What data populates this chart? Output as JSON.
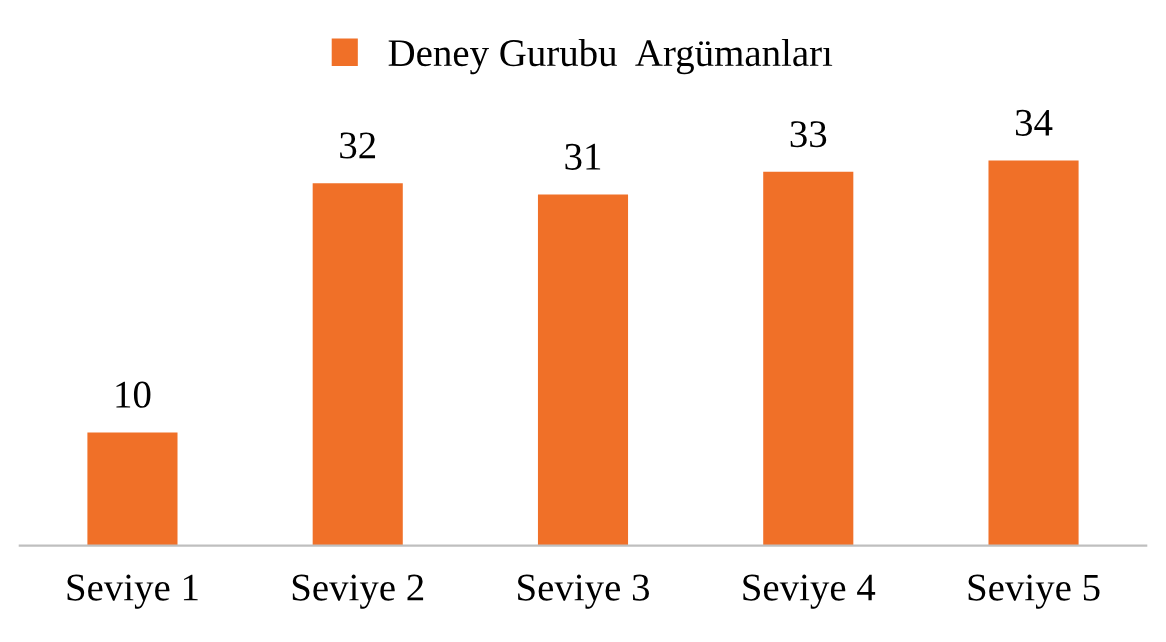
{
  "chart_data": {
    "type": "bar",
    "categories": [
      "Seviye 1",
      "Seviye 2",
      "Seviye 3",
      "Seviye 4",
      "Seviye 5"
    ],
    "series": [
      {
        "name": "Deney Gurubu  Argümanları",
        "color": "#f07028",
        "values": [
          10,
          32,
          31,
          33,
          34
        ]
      }
    ],
    "data_labels": true,
    "legend": "top",
    "grid": false
  }
}
